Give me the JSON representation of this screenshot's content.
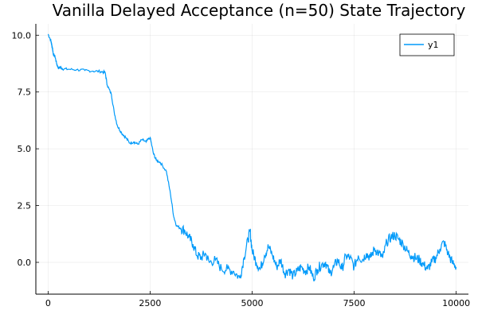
{
  "chart_data": {
    "type": "line",
    "title": "Vanilla Delayed Acceptance (n=50) State Trajectory",
    "xlabel": "",
    "ylabel": "",
    "xlim": [
      -300,
      10300
    ],
    "ylim": [
      -1.4,
      10.5
    ],
    "x_ticks": [
      0,
      2500,
      5000,
      7500,
      10000
    ],
    "x_tick_labels": [
      "0",
      "2500",
      "5000",
      "7500",
      "10000"
    ],
    "y_ticks": [
      0.0,
      2.5,
      5.0,
      7.5,
      10.0
    ],
    "y_tick_labels": [
      "0.0",
      "2.5",
      "5.0",
      "7.5",
      "10.0"
    ],
    "grid": true,
    "legend_position": "top-right",
    "series": [
      {
        "name": "y1",
        "color": "#009AFA",
        "points": [
          [
            0,
            10.05
          ],
          [
            60,
            9.8
          ],
          [
            100,
            9.5
          ],
          [
            130,
            9.15
          ],
          [
            170,
            9.05
          ],
          [
            210,
            8.75
          ],
          [
            250,
            8.55
          ],
          [
            300,
            8.6
          ],
          [
            350,
            8.52
          ],
          [
            500,
            8.5
          ],
          [
            700,
            8.48
          ],
          [
            900,
            8.45
          ],
          [
            1100,
            8.42
          ],
          [
            1300,
            8.4
          ],
          [
            1400,
            8.35
          ],
          [
            1450,
            7.8
          ],
          [
            1550,
            7.4
          ],
          [
            1620,
            6.6
          ],
          [
            1700,
            6.0
          ],
          [
            1800,
            5.7
          ],
          [
            1900,
            5.5
          ],
          [
            2000,
            5.25
          ],
          [
            2100,
            5.3
          ],
          [
            2200,
            5.2
          ],
          [
            2300,
            5.4
          ],
          [
            2400,
            5.3
          ],
          [
            2500,
            5.5
          ],
          [
            2580,
            4.8
          ],
          [
            2650,
            4.5
          ],
          [
            2750,
            4.4
          ],
          [
            2900,
            4.0
          ],
          [
            3000,
            3.0
          ],
          [
            3080,
            2.0
          ],
          [
            3150,
            1.6
          ],
          [
            3250,
            1.5
          ],
          [
            3350,
            1.4
          ],
          [
            3450,
            1.1
          ],
          [
            3550,
            0.8
          ],
          [
            3650,
            0.3
          ],
          [
            3750,
            0.2
          ],
          [
            3850,
            0.4
          ],
          [
            3950,
            0.0
          ],
          [
            4100,
            0.1
          ],
          [
            4250,
            -0.3
          ],
          [
            4400,
            -0.3
          ],
          [
            4550,
            -0.4
          ],
          [
            4700,
            -0.7
          ],
          [
            4800,
            0.2
          ],
          [
            4900,
            1.0
          ],
          [
            4950,
            1.4
          ],
          [
            5000,
            0.5
          ],
          [
            5100,
            0.0
          ],
          [
            5200,
            -0.3
          ],
          [
            5300,
            0.3
          ],
          [
            5400,
            0.7
          ],
          [
            5500,
            0.3
          ],
          [
            5600,
            -0.2
          ],
          [
            5700,
            0.1
          ],
          [
            5800,
            -0.5
          ],
          [
            5900,
            -0.3
          ],
          [
            6000,
            -0.6
          ],
          [
            6100,
            -0.4
          ],
          [
            6200,
            -0.2
          ],
          [
            6300,
            -0.4
          ],
          [
            6400,
            -0.2
          ],
          [
            6500,
            -0.7
          ],
          [
            6600,
            -0.3
          ],
          [
            6700,
            -0.1
          ],
          [
            6800,
            0.0
          ],
          [
            6900,
            -0.5
          ],
          [
            7000,
            -0.2
          ],
          [
            7100,
            0.1
          ],
          [
            7200,
            -0.3
          ],
          [
            7300,
            0.3
          ],
          [
            7400,
            0.2
          ],
          [
            7500,
            -0.2
          ],
          [
            7600,
            0.3
          ],
          [
            7700,
            0.1
          ],
          [
            7800,
            0.4
          ],
          [
            7900,
            0.2
          ],
          [
            8000,
            0.6
          ],
          [
            8100,
            0.4
          ],
          [
            8200,
            0.2
          ],
          [
            8300,
            0.9
          ],
          [
            8400,
            1.1
          ],
          [
            8500,
            1.2
          ],
          [
            8600,
            1.0
          ],
          [
            8700,
            0.8
          ],
          [
            8800,
            0.5
          ],
          [
            8900,
            0.3
          ],
          [
            9000,
            0.2
          ],
          [
            9100,
            0.1
          ],
          [
            9200,
            -0.1
          ],
          [
            9300,
            -0.3
          ],
          [
            9400,
            0.0
          ],
          [
            9500,
            0.2
          ],
          [
            9600,
            0.6
          ],
          [
            9700,
            0.9
          ],
          [
            9800,
            0.4
          ],
          [
            9900,
            0.0
          ],
          [
            10000,
            -0.2
          ]
        ]
      }
    ]
  }
}
